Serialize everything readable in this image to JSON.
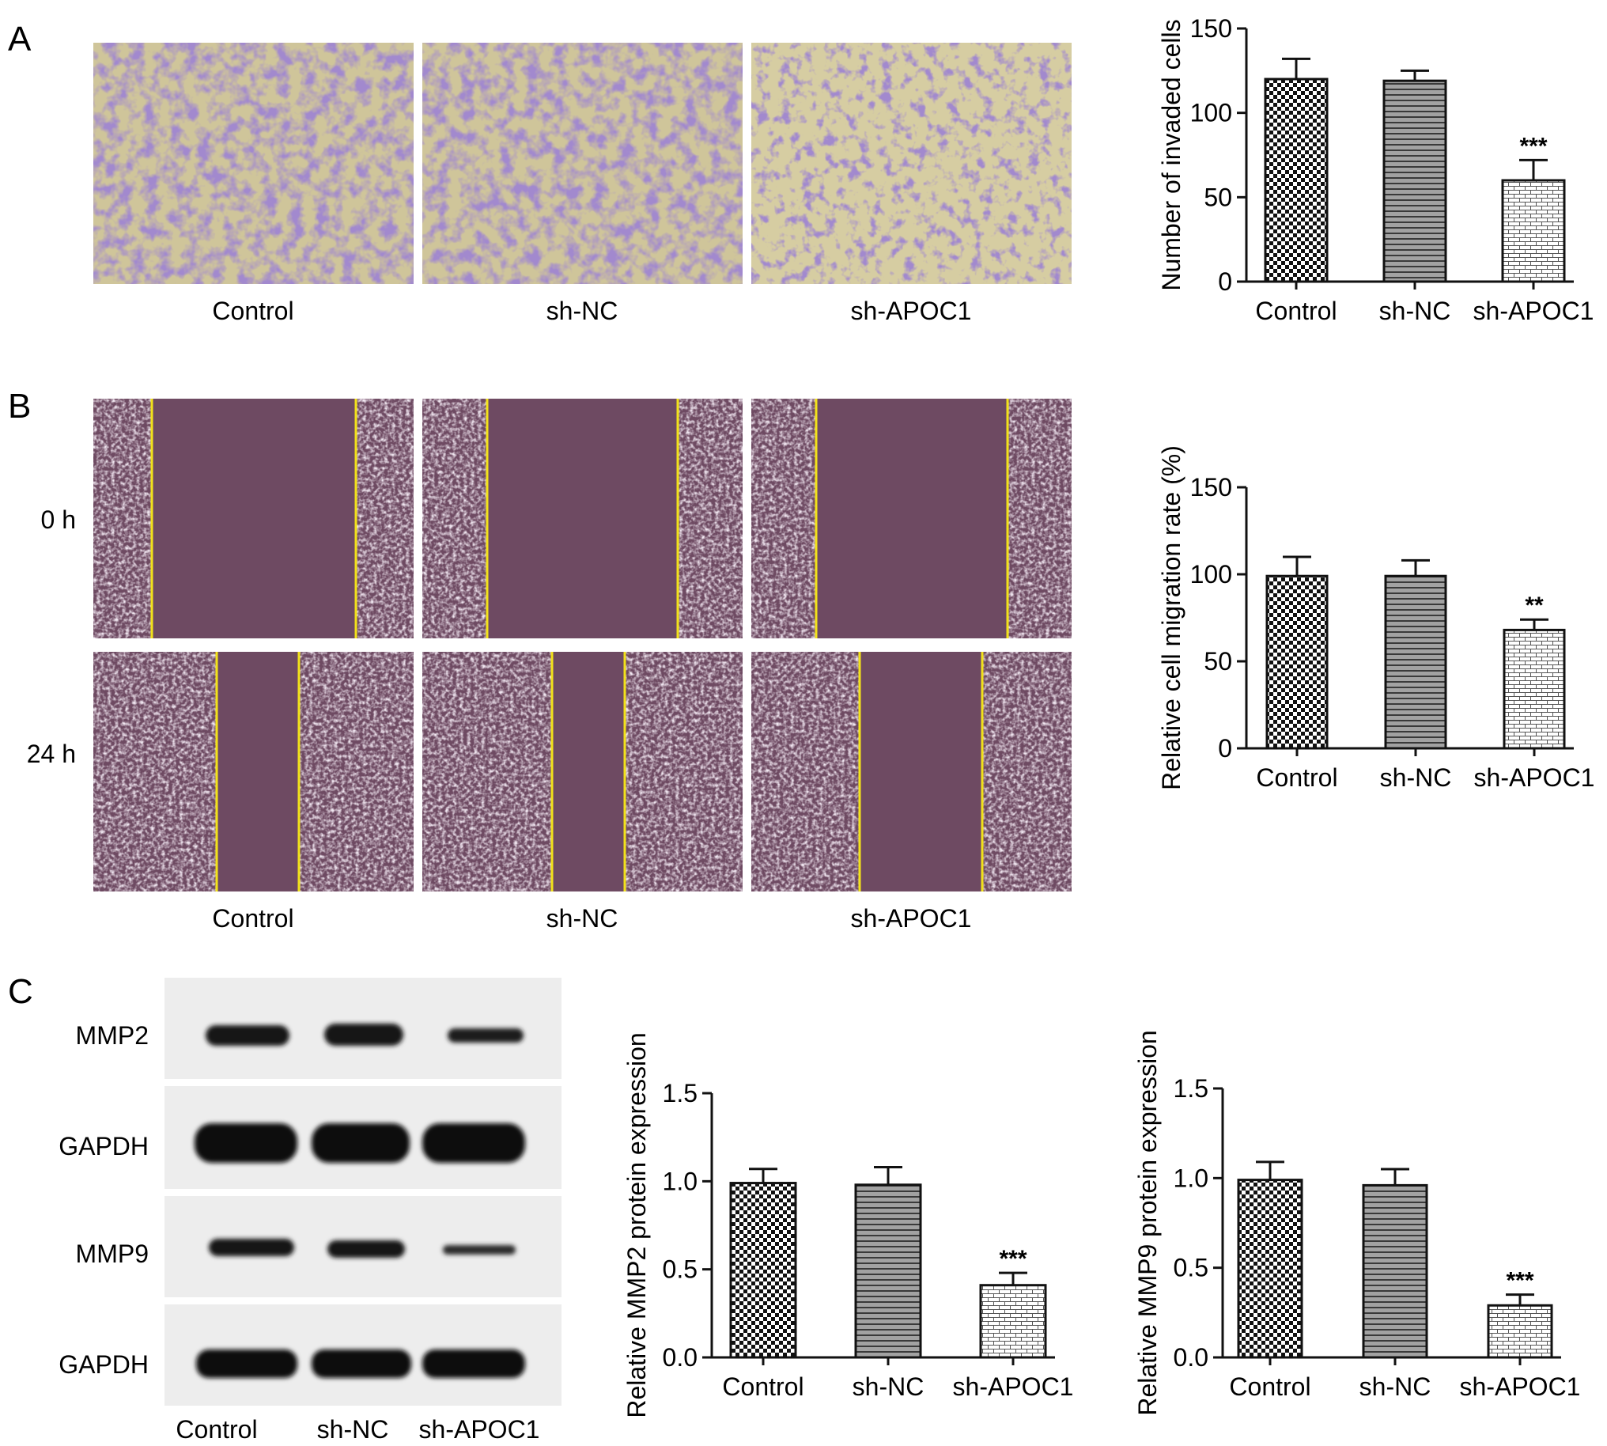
{
  "panels": {
    "A": {
      "letter": "A",
      "captions": [
        "Control",
        "sh-NC",
        "sh-APOC1"
      ]
    },
    "B": {
      "letter": "B",
      "captions": [
        "Control",
        "sh-NC",
        "sh-APOC1"
      ],
      "row_labels": [
        "0 h",
        "24 h"
      ]
    },
    "C": {
      "letter": "C",
      "blot_labels": [
        "MMP2",
        "GAPDH",
        "MMP9",
        "GAPDH"
      ],
      "lane_labels": [
        "Control",
        "sh-NC",
        "sh-APOC1"
      ]
    }
  },
  "colors": {
    "invasion_stain": "#5b3f9e",
    "invasion_background": "#cfc59a",
    "wound_background": "#6e4a62",
    "wound_edge_line": "#f2e21a",
    "blot_background": "#ededed",
    "band": "#141414"
  },
  "chart_data": [
    {
      "type": "bar",
      "id": "invasion",
      "categories": [
        "Control",
        "sh-NC",
        "sh-APOC1"
      ],
      "values": [
        120,
        119,
        60
      ],
      "errors": [
        12,
        6,
        12
      ],
      "significance": [
        "",
        "",
        "***"
      ],
      "patterns": [
        "checker",
        "hlines",
        "brick"
      ],
      "ylabel": "Number of invaded cells",
      "ylim": [
        0,
        150
      ],
      "yticks": [
        0,
        50,
        100,
        150
      ],
      "ytick_labels": [
        "0",
        "50",
        "100",
        "150"
      ]
    },
    {
      "type": "bar",
      "id": "migration",
      "categories": [
        "Control",
        "sh-NC",
        "sh-APOC1"
      ],
      "values": [
        99,
        99,
        68
      ],
      "errors": [
        11,
        9,
        6
      ],
      "significance": [
        "",
        "",
        "**"
      ],
      "patterns": [
        "checker",
        "hlines",
        "brick"
      ],
      "ylabel": "Relative cell migration rate (%)",
      "ylim": [
        0,
        150
      ],
      "yticks": [
        0,
        50,
        100,
        150
      ],
      "ytick_labels": [
        "0",
        "50",
        "100",
        "150"
      ]
    },
    {
      "type": "bar",
      "id": "mmp2",
      "categories": [
        "Control",
        "sh-NC",
        "sh-APOC1"
      ],
      "values": [
        0.99,
        0.98,
        0.41
      ],
      "errors": [
        0.08,
        0.1,
        0.07
      ],
      "significance": [
        "",
        "",
        "***"
      ],
      "patterns": [
        "checker",
        "hlines",
        "brick"
      ],
      "ylabel": "Relative MMP2 protein expression",
      "ylim": [
        0,
        1.5
      ],
      "yticks": [
        0,
        0.5,
        1.0,
        1.5
      ],
      "ytick_labels": [
        "0.0",
        "0.5",
        "1.0",
        "1.5"
      ]
    },
    {
      "type": "bar",
      "id": "mmp9",
      "categories": [
        "Control",
        "sh-NC",
        "sh-APOC1"
      ],
      "values": [
        0.99,
        0.96,
        0.29
      ],
      "errors": [
        0.1,
        0.09,
        0.06
      ],
      "significance": [
        "",
        "",
        "***"
      ],
      "patterns": [
        "checker",
        "hlines",
        "brick"
      ],
      "ylabel": "Relative MMP9 protein expression",
      "ylim": [
        0,
        1.5
      ],
      "yticks": [
        0,
        0.5,
        1.0,
        1.5
      ],
      "ytick_labels": [
        "0.0",
        "0.5",
        "1.0",
        "1.5"
      ]
    }
  ]
}
